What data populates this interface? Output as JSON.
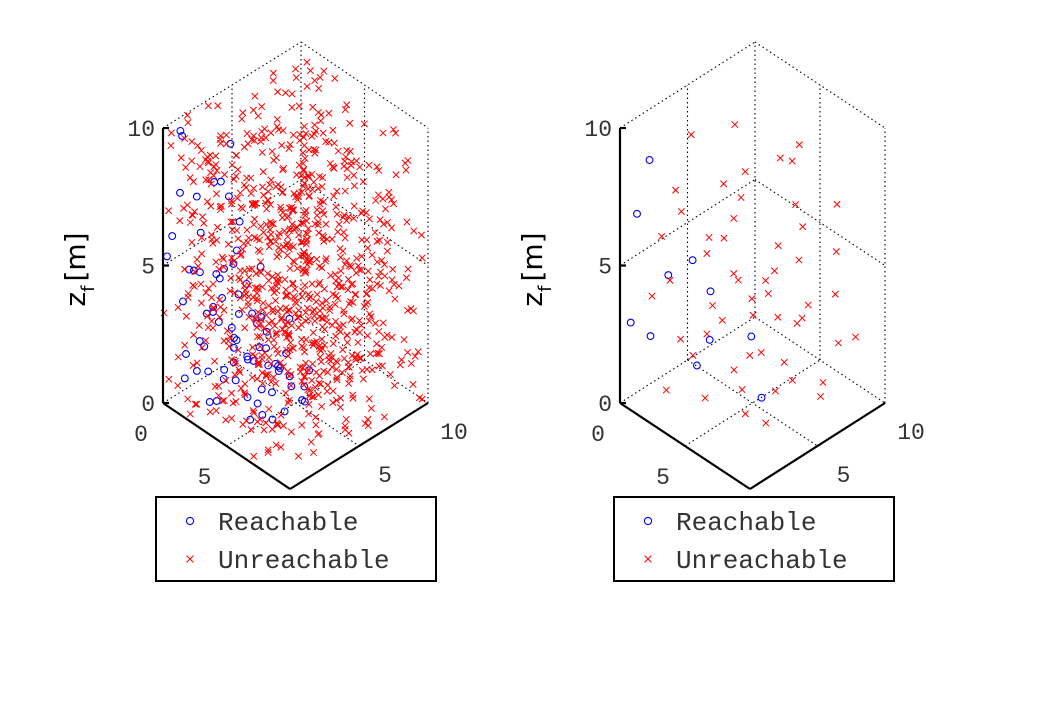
{
  "figure": {
    "background": "#ffffff"
  },
  "chart_data": [
    {
      "type": "scatter",
      "title": "",
      "axes3d": true,
      "grid": true,
      "xlabel": "",
      "ylabel": "",
      "zlabel": "z",
      "zlabel_sub": "f",
      "zlabel_unit": "[m]",
      "xlim": [
        0,
        10
      ],
      "ylim": [
        0,
        10
      ],
      "zlim": [
        0,
        10
      ],
      "x_ticks": [
        "0",
        "5",
        "10"
      ],
      "y_ticks": [
        "0",
        "5",
        "10"
      ],
      "z_ticks": [
        "0",
        "5",
        "10"
      ],
      "legend": {
        "location": "bottom",
        "entries": [
          "Reachable",
          "Unreachable"
        ]
      },
      "series": [
        {
          "name": "Reachable",
          "marker": "o",
          "color": "#0000ff",
          "points": [
            [
              0.5,
              0.8,
              9.8
            ],
            [
              0.2,
              1.2,
              9.4
            ],
            [
              1.5,
              3.5,
              8.8
            ],
            [
              2.6,
              1.8,
              8.3
            ],
            [
              0.9,
              0.4,
              7.8
            ],
            [
              1.2,
              2.6,
              7.6
            ],
            [
              2.8,
              2.2,
              7.7
            ],
            [
              0.6,
              1.9,
              7.1
            ],
            [
              2.1,
              0.8,
              6.6
            ],
            [
              0.4,
              0.3,
              6.1
            ],
            [
              1.9,
              3.8,
              6.0
            ],
            [
              3.2,
              2.4,
              5.8
            ],
            [
              0.1,
              0.2,
              5.3
            ],
            [
              1.4,
              0.6,
              5.1
            ],
            [
              3.5,
              1.2,
              5.6
            ],
            [
              2.4,
              2.9,
              4.9
            ],
            [
              0.8,
              1.5,
              4.6
            ],
            [
              1.7,
              2.3,
              4.5
            ],
            [
              4.1,
              3.3,
              5.2
            ],
            [
              0.3,
              2.4,
              4.1
            ],
            [
              2.9,
              0.5,
              4.0
            ],
            [
              1.1,
              3.1,
              3.9
            ],
            [
              3.8,
              2.0,
              3.8
            ],
            [
              0.6,
              0.9,
              3.6
            ],
            [
              2.2,
              1.6,
              3.5
            ],
            [
              4.4,
              1.1,
              3.4
            ],
            [
              1.6,
              4.0,
              3.2
            ],
            [
              3.1,
              3.6,
              3.1
            ],
            [
              0.9,
              2.8,
              2.9
            ],
            [
              2.7,
              2.5,
              2.8
            ],
            [
              4.7,
              0.8,
              2.7
            ],
            [
              0.2,
              4.1,
              2.6
            ],
            [
              1.8,
              1.0,
              2.5
            ],
            [
              3.6,
              4.2,
              2.4
            ],
            [
              5.1,
              2.3,
              2.9
            ],
            [
              2.4,
              4.6,
              2.2
            ],
            [
              0.7,
              3.4,
              2.1
            ],
            [
              4.2,
              2.7,
              2.0
            ],
            [
              1.3,
              1.8,
              1.9
            ],
            [
              3.3,
              1.4,
              1.8
            ],
            [
              5.3,
              3.6,
              1.8
            ],
            [
              2.0,
              3.3,
              1.6
            ],
            [
              0.4,
              1.3,
              1.5
            ],
            [
              4.6,
              4.1,
              1.5
            ],
            [
              2.9,
              4.8,
              1.4
            ],
            [
              1.5,
              0.2,
              1.3
            ],
            [
              3.9,
              0.3,
              1.2
            ],
            [
              5.6,
              1.7,
              1.2
            ],
            [
              0.8,
              4.6,
              1.1
            ],
            [
              2.5,
              2.1,
              1.0
            ],
            [
              4.4,
              3.1,
              0.9
            ],
            [
              1.9,
              4.4,
              0.8
            ],
            [
              3.2,
              5.2,
              0.8
            ],
            [
              0.5,
              2.0,
              0.7
            ],
            [
              5.0,
              4.7,
              0.7
            ],
            [
              2.7,
              0.9,
              0.6
            ],
            [
              4.0,
              5.5,
              0.5
            ],
            [
              1.2,
              5.0,
              0.5
            ],
            [
              3.5,
              2.9,
              0.4
            ],
            [
              5.8,
              2.6,
              0.4
            ],
            [
              0.3,
              3.0,
              0.3
            ],
            [
              2.2,
              5.6,
              0.3
            ],
            [
              4.8,
              1.9,
              0.3
            ],
            [
              1.7,
              3.7,
              0.2
            ],
            [
              3.8,
              4.4,
              0.2
            ],
            [
              5.4,
              5.1,
              0.2
            ],
            [
              6.1,
              3.2,
              0.6
            ],
            [
              2.6,
              6.0,
              0.1
            ],
            [
              4.5,
              6.1,
              0.1
            ],
            [
              1.0,
              6.2,
              1.5
            ],
            [
              6.3,
              1.4,
              1.1
            ],
            [
              3.0,
              6.4,
              2.0
            ],
            [
              5.2,
              5.8,
              1.0
            ],
            [
              0.6,
              5.5,
              2.8
            ],
            [
              6.6,
              4.2,
              0.8
            ],
            [
              2.3,
              6.8,
              0.4
            ]
          ]
        },
        {
          "name": "Unreachable",
          "marker": "x",
          "color": "#ff0000",
          "seed": 7,
          "count": 900
        }
      ]
    },
    {
      "type": "scatter",
      "title": "",
      "axes3d": true,
      "grid": true,
      "xlabel": "",
      "ylabel": "",
      "zlabel": "z",
      "zlabel_sub": "f",
      "zlabel_unit": "[m]",
      "xlim": [
        0,
        10
      ],
      "ylim": [
        0,
        10
      ],
      "zlim": [
        0,
        10
      ],
      "x_ticks": [
        "0",
        "5",
        "10"
      ],
      "y_ticks": [
        "0",
        "5",
        "10"
      ],
      "z_ticks": [
        "0",
        "5",
        "10"
      ],
      "legend": {
        "location": "bottom",
        "entries": [
          "Reachable",
          "Unreachable"
        ]
      },
      "series": [
        {
          "name": "Reachable",
          "marker": "o",
          "color": "#0000ff",
          "points": [
            [
              0.4,
              1.8,
              8.4
            ],
            [
              1.0,
              0.3,
              7.1
            ],
            [
              3.4,
              2.1,
              5.6
            ],
            [
              0.6,
              3.0,
              3.9
            ],
            [
              2.5,
              4.3,
              3.5
            ],
            [
              0.2,
              0.6,
              2.8
            ],
            [
              1.1,
              1.2,
              2.4
            ],
            [
              4.2,
              2.6,
              2.8
            ],
            [
              2.8,
              3.0,
              1.3
            ],
            [
              4.6,
              5.3,
              2.2
            ],
            [
              6.0,
              4.7,
              0.6
            ]
          ]
        },
        {
          "name": "Unreachable",
          "marker": "x",
          "color": "#ff0000",
          "points": [
            [
              2.5,
              6.1,
              9.0
            ],
            [
              6.2,
              5.9,
              9.0
            ],
            [
              0.8,
              4.5,
              8.6
            ],
            [
              5.8,
              7.7,
              8.8
            ],
            [
              7.9,
              5.4,
              8.0
            ],
            [
              3.4,
              6.0,
              7.6
            ],
            [
              6.4,
              2.8,
              8.6
            ],
            [
              2.2,
              2.0,
              7.8
            ],
            [
              8.8,
              7.6,
              7.6
            ],
            [
              4.6,
              4.0,
              6.9
            ],
            [
              1.4,
              3.2,
              6.4
            ],
            [
              7.2,
              6.6,
              6.6
            ],
            [
              5.4,
              2.5,
              6.9
            ],
            [
              9.2,
              4.4,
              6.7
            ],
            [
              3.0,
              3.7,
              5.8
            ],
            [
              6.8,
              4.9,
              5.4
            ],
            [
              0.5,
              2.6,
              5.4
            ],
            [
              8.4,
              2.9,
              5.7
            ],
            [
              4.8,
              7.1,
              5.0
            ],
            [
              2.6,
              1.2,
              4.9
            ],
            [
              7.5,
              8.8,
              5.1
            ],
            [
              5.9,
              5.1,
              4.7
            ],
            [
              1.6,
              4.9,
              4.4
            ],
            [
              9.5,
              6.8,
              4.8
            ],
            [
              3.7,
              5.2,
              4.0
            ],
            [
              6.5,
              3.6,
              4.1
            ],
            [
              0.9,
              1.5,
              3.7
            ],
            [
              8.2,
              5.6,
              3.9
            ],
            [
              4.4,
              2.2,
              3.2
            ],
            [
              2.0,
              6.5,
              3.3
            ],
            [
              7.0,
              7.2,
              3.5
            ],
            [
              5.6,
              6.3,
              2.9
            ],
            [
              9.0,
              3.5,
              3.2
            ],
            [
              3.2,
              4.5,
              2.6
            ],
            [
              6.9,
              1.8,
              2.8
            ],
            [
              1.3,
              5.6,
              2.2
            ],
            [
              8.6,
              7.9,
              2.4
            ],
            [
              4.9,
              8.4,
              1.8
            ],
            [
              2.7,
              2.8,
              1.7
            ],
            [
              7.6,
              4.2,
              1.5
            ],
            [
              0.3,
              4.2,
              1.1
            ],
            [
              5.2,
              1.3,
              1.4
            ],
            [
              9.3,
              5.9,
              1.3
            ],
            [
              3.8,
              6.8,
              0.9
            ],
            [
              6.3,
              6.7,
              0.7
            ],
            [
              1.8,
              1.7,
              0.5
            ],
            [
              8.0,
              3.1,
              0.8
            ],
            [
              4.3,
              4.9,
              0.3
            ],
            [
              2.4,
              7.3,
              0.2
            ],
            [
              7.1,
              8.2,
              0.4
            ],
            [
              5.7,
              3.8,
              0.2
            ],
            [
              9.7,
              8.1,
              2.9
            ],
            [
              0.7,
              7.0,
              6.0
            ],
            [
              3.9,
              9.0,
              7.2
            ],
            [
              8.9,
              1.2,
              6.2
            ]
          ]
        }
      ]
    }
  ]
}
